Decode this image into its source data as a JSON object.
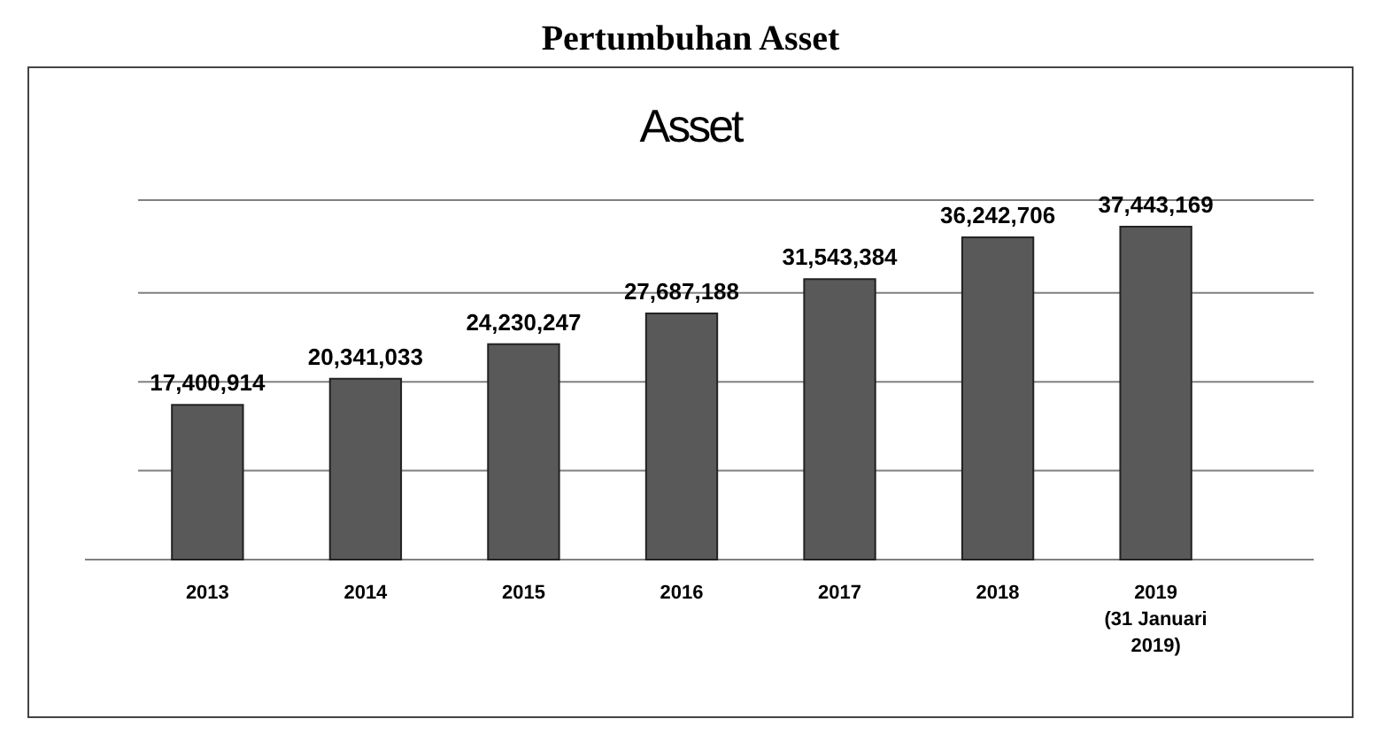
{
  "chart_data": {
    "type": "bar",
    "title": "Pertumbuhan Asset",
    "subtitle": "Asset",
    "categories": [
      "2013",
      "2014",
      "2015",
      "2016",
      "2017",
      "2018",
      "2019\n(31 Januari\n2019)"
    ],
    "values": [
      17400914,
      20341033,
      24230247,
      27687188,
      31543384,
      36242706,
      37443169
    ],
    "value_labels": [
      "17,400,914",
      "20,341,033",
      "24,230,247",
      "27,687,188",
      "31,543,384",
      "36,242,706",
      "37,443,169"
    ],
    "color": "#595959",
    "grid": "y",
    "tick_labels": "x"
  }
}
